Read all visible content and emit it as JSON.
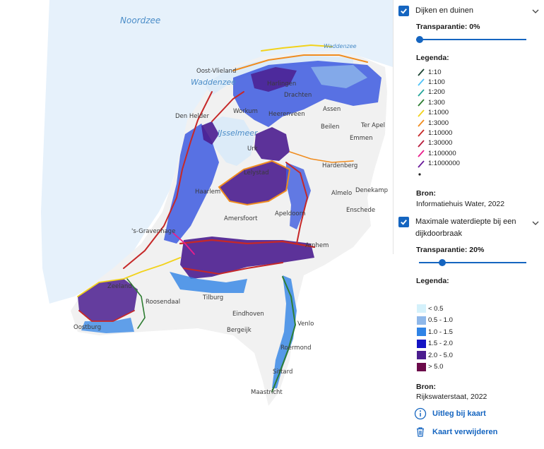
{
  "map": {
    "water_labels": [
      "Noordzee",
      "Waddenzee",
      "Waddenzee",
      "IJsselmeer"
    ],
    "places": [
      "Oost-Vlieland",
      "Den Helder",
      "Harlingen",
      "Heerenveen",
      "Drachten",
      "Assen",
      "Beilen",
      "Ter Apel",
      "Emmen",
      "Lelystad",
      "Hardenberg",
      "Almelo",
      "Denekamp",
      "Enschede",
      "Apeldoorn",
      "Haarlem",
      "Amersfoort",
      "'s-Gravenhage",
      "Arnhem",
      "Roosendaal",
      "Tilburg",
      "Eindhoven",
      "Venlo",
      "Bergeijk",
      "Roermond",
      "Sittard",
      "Maastricht",
      "Oostburg",
      "Zeeland",
      "Urk",
      "Workum"
    ]
  },
  "panel": {
    "layer1": {
      "title": "Dijken en duinen",
      "transparency_label": "Transparantie: 0%",
      "transparency": 0,
      "legend_title": "Legenda:",
      "legend": [
        {
          "label": "1:10",
          "color": "#1b4332"
        },
        {
          "label": "1:100",
          "color": "#4fc3f7"
        },
        {
          "label": "1:200",
          "color": "#26a69a"
        },
        {
          "label": "1:300",
          "color": "#2e7d32"
        },
        {
          "label": "1:1000",
          "color": "#f2d21b"
        },
        {
          "label": "1:3000",
          "color": "#f08c1f"
        },
        {
          "label": "1:10000",
          "color": "#c62828"
        },
        {
          "label": "1:30000",
          "color": "#b71c3c"
        },
        {
          "label": "1:100000",
          "color": "#e91e8c"
        },
        {
          "label": "1:1000000",
          "color": "#6a1b9a"
        }
      ],
      "source_title": "Bron:",
      "source": "Informatiehuis Water, 2022"
    },
    "layer2": {
      "title": "Maximale waterdiepte bij een dijkdoorbraak",
      "transparency_label": "Transparantie: 20%",
      "transparency": 20,
      "legend_title": "Legenda:",
      "legend": [
        {
          "label": "< 0.5",
          "color": "#d4f1fb"
        },
        {
          "label": "0.5 - 1.0",
          "color": "#8fb8ea"
        },
        {
          "label": "1.0 - 1.5",
          "color": "#2f83e6"
        },
        {
          "label": "1.5 - 2.0",
          "color": "#1414c4"
        },
        {
          "label": "2.0 - 5.0",
          "color": "#4b1d8f"
        },
        {
          "label": "> 5.0",
          "color": "#6b0a4a"
        }
      ],
      "source_title": "Bron:",
      "source": "Rijkswaterstaat, 2022"
    },
    "links": {
      "explain": "Uitleg bij kaart",
      "remove": "Kaart verwijderen"
    }
  },
  "colors": {
    "accent": "#1565c0",
    "sea": "#e6f1fb",
    "land": "#f2f2f2"
  }
}
